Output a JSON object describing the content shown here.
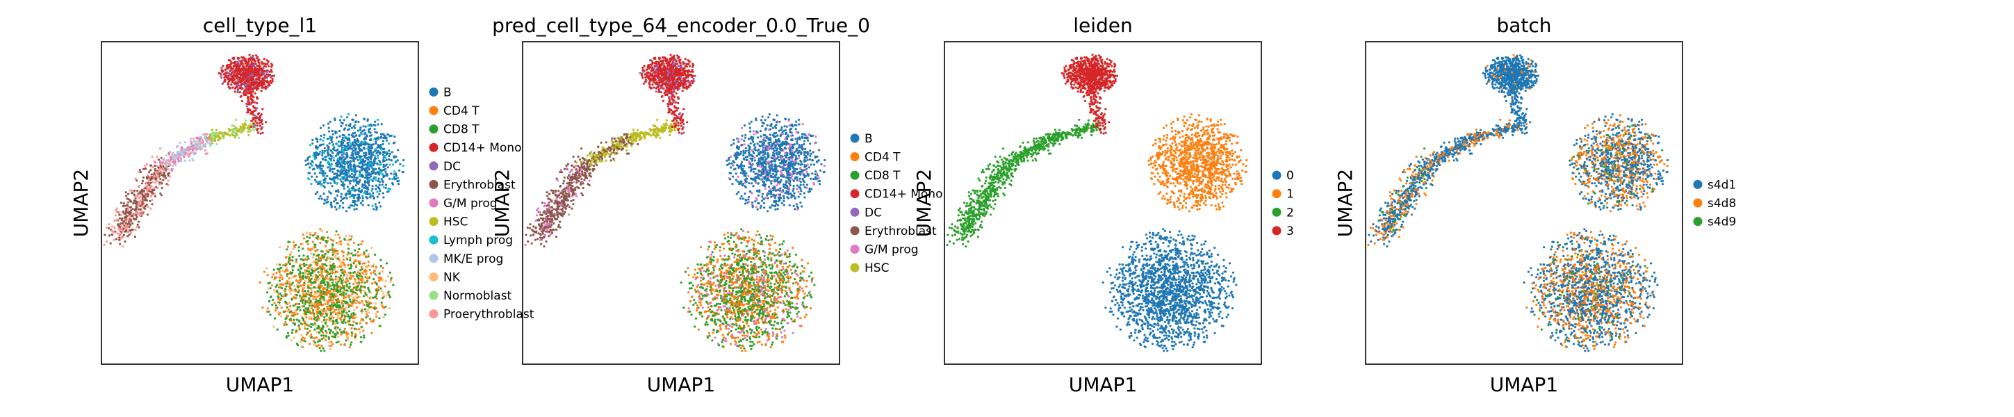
{
  "figure": {
    "description_type": "umap-embedding-panels"
  },
  "colors": {
    "tab_blue": "#1f77b4",
    "tab_orange": "#ff7f0e",
    "tab_green": "#2ca02c",
    "tab_red": "#d62728",
    "tab_purple": "#9467bd",
    "tab_brown": "#8c564b",
    "tab_pink": "#e377c2",
    "tab_olive": "#bcbd22",
    "tab_cyan": "#17becf",
    "light_blue": "#aec7e8",
    "light_orange": "#ffbb78",
    "light_green": "#98df8a",
    "light_red": "#ff9896"
  },
  "chart_data": [
    {
      "type": "scatter",
      "title": "cell_type_l1",
      "xlabel": "UMAP1",
      "ylabel": "UMAP2",
      "xticks": [],
      "yticks": [],
      "legend": [
        {
          "label": "B",
          "color": "#1f77b4"
        },
        {
          "label": "CD4 T",
          "color": "#ff7f0e"
        },
        {
          "label": "CD8 T",
          "color": "#2ca02c"
        },
        {
          "label": "CD14+ Mono",
          "color": "#d62728"
        },
        {
          "label": "DC",
          "color": "#9467bd"
        },
        {
          "label": "Erythroblast",
          "color": "#8c564b"
        },
        {
          "label": "G/M prog",
          "color": "#e377c2"
        },
        {
          "label": "HSC",
          "color": "#bcbd22"
        },
        {
          "label": "Lymph prog",
          "color": "#17becf"
        },
        {
          "label": "MK/E prog",
          "color": "#aec7e8"
        },
        {
          "label": "NK",
          "color": "#ffbb78"
        },
        {
          "label": "Normoblast",
          "color": "#98df8a"
        },
        {
          "label": "Proerythroblast",
          "color": "#ff9896"
        }
      ],
      "clusters": [
        {
          "region": "mono",
          "mix": [
            [
              3,
              0.85
            ],
            [
              4,
              0.15
            ]
          ]
        },
        {
          "region": "bcell",
          "mix": [
            [
              0,
              0.85
            ],
            [
              8,
              0.15
            ]
          ]
        },
        {
          "region": "tnk",
          "mix": [
            [
              1,
              0.38
            ],
            [
              2,
              0.42
            ],
            [
              10,
              0.2
            ]
          ]
        },
        {
          "region": "trail_left",
          "mix": [
            [
              5,
              0.55
            ],
            [
              12,
              0.45
            ]
          ]
        },
        {
          "region": "trail_mid",
          "mix": [
            [
              9,
              0.5
            ],
            [
              12,
              0.25
            ],
            [
              6,
              0.25
            ]
          ]
        },
        {
          "region": "trail_right",
          "mix": [
            [
              7,
              0.6
            ],
            [
              11,
              0.4
            ]
          ]
        }
      ]
    },
    {
      "type": "scatter",
      "title": "pred_cell_type_64_encoder_0.0_True_0",
      "xlabel": "UMAP1",
      "ylabel": "UMAP2",
      "xticks": [],
      "yticks": [],
      "legend": [
        {
          "label": "B",
          "color": "#1f77b4"
        },
        {
          "label": "CD4 T",
          "color": "#ff7f0e"
        },
        {
          "label": "CD8 T",
          "color": "#2ca02c"
        },
        {
          "label": "CD14+ Mono",
          "color": "#d62728"
        },
        {
          "label": "DC",
          "color": "#9467bd"
        },
        {
          "label": "Erythroblast",
          "color": "#8c564b"
        },
        {
          "label": "G/M prog",
          "color": "#e377c2"
        },
        {
          "label": "HSC",
          "color": "#bcbd22"
        }
      ],
      "clusters": [
        {
          "region": "mono",
          "mix": [
            [
              3,
              0.85
            ],
            [
              4,
              0.15
            ]
          ]
        },
        {
          "region": "bcell",
          "mix": [
            [
              0,
              0.85
            ],
            [
              6,
              0.15
            ]
          ]
        },
        {
          "region": "tnk",
          "mix": [
            [
              1,
              0.4
            ],
            [
              2,
              0.45
            ],
            [
              6,
              0.15
            ]
          ]
        },
        {
          "region": "trail_left",
          "mix": [
            [
              5,
              0.85
            ],
            [
              6,
              0.15
            ]
          ]
        },
        {
          "region": "trail_mid",
          "mix": [
            [
              5,
              0.5
            ],
            [
              7,
              0.5
            ]
          ]
        },
        {
          "region": "trail_right",
          "mix": [
            [
              7,
              1.0
            ]
          ]
        }
      ]
    },
    {
      "type": "scatter",
      "title": "leiden",
      "xlabel": "UMAP1",
      "ylabel": "UMAP2",
      "xticks": [],
      "yticks": [],
      "legend": [
        {
          "label": "0",
          "color": "#1f77b4"
        },
        {
          "label": "1",
          "color": "#ff7f0e"
        },
        {
          "label": "2",
          "color": "#2ca02c"
        },
        {
          "label": "3",
          "color": "#d62728"
        }
      ],
      "clusters": [
        {
          "region": "mono",
          "mix": [
            [
              3,
              1.0
            ]
          ]
        },
        {
          "region": "bcell",
          "mix": [
            [
              1,
              1.0
            ]
          ]
        },
        {
          "region": "tnk",
          "mix": [
            [
              0,
              1.0
            ]
          ]
        },
        {
          "region": "trail_left",
          "mix": [
            [
              2,
              1.0
            ]
          ]
        },
        {
          "region": "trail_mid",
          "mix": [
            [
              2,
              1.0
            ]
          ]
        },
        {
          "region": "trail_right",
          "mix": [
            [
              2,
              1.0
            ]
          ]
        }
      ]
    },
    {
      "type": "scatter",
      "title": "batch",
      "xlabel": "UMAP1",
      "ylabel": "UMAP2",
      "xticks": [],
      "yticks": [],
      "legend": [
        {
          "label": "s4d1",
          "color": "#1f77b4"
        },
        {
          "label": "s4d8",
          "color": "#ff7f0e"
        },
        {
          "label": "s4d9",
          "color": "#2ca02c"
        }
      ],
      "clusters": [
        {
          "region": "mono",
          "mix": [
            [
              0,
              0.95
            ],
            [
              1,
              0.05
            ]
          ]
        },
        {
          "region": "bcell",
          "mix": [
            [
              0,
              0.55
            ],
            [
              1,
              0.4
            ],
            [
              2,
              0.05
            ]
          ]
        },
        {
          "region": "tnk",
          "mix": [
            [
              0,
              0.55
            ],
            [
              1,
              0.4
            ],
            [
              2,
              0.05
            ]
          ]
        },
        {
          "region": "trail_left",
          "mix": [
            [
              0,
              0.6
            ],
            [
              1,
              0.35
            ],
            [
              2,
              0.05
            ]
          ]
        },
        {
          "region": "trail_mid",
          "mix": [
            [
              0,
              0.7
            ],
            [
              1,
              0.3
            ]
          ]
        },
        {
          "region": "trail_right",
          "mix": [
            [
              0,
              0.7
            ],
            [
              1,
              0.3
            ]
          ]
        }
      ]
    }
  ]
}
